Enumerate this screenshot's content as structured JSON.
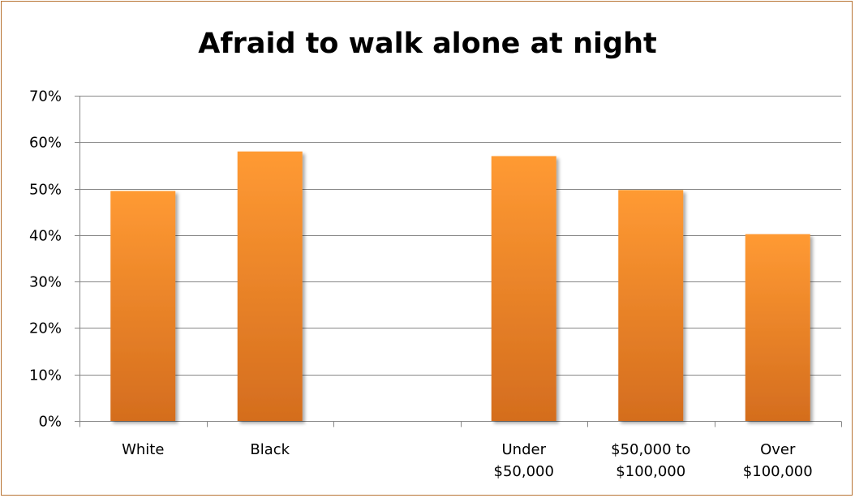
{
  "chart_data": {
    "type": "bar",
    "title": "Afraid to walk alone at night",
    "xlabel": "",
    "ylabel": "",
    "categories": [
      [
        "White"
      ],
      [
        "Black"
      ],
      [
        ""
      ],
      [
        "Under",
        "$50,000"
      ],
      [
        "$50,000 to",
        "$100,000"
      ],
      [
        "Over",
        "$100,000"
      ]
    ],
    "values": [
      49.5,
      58,
      null,
      57,
      49.7,
      40.2
    ],
    "y_ticks": [
      "0%",
      "10%",
      "20%",
      "30%",
      "40%",
      "50%",
      "60%",
      "70%"
    ],
    "ylim": [
      0,
      70
    ],
    "grid": true,
    "legend": "none",
    "colors": {
      "bar_top": "#ff9a33",
      "bar_bottom": "#d46d1e",
      "frame": "#b87333",
      "grid": "#878787"
    }
  }
}
